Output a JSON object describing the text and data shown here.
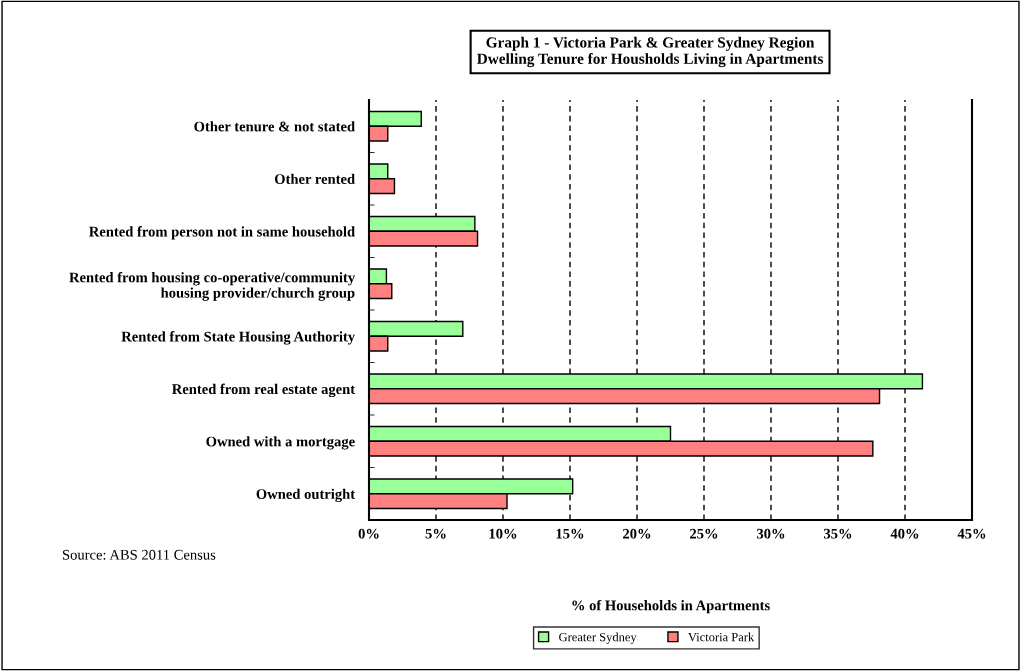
{
  "chart_data": {
    "type": "bar",
    "orientation": "horizontal",
    "title": "Graph 1 - Victoria Park & Greater Sydney Region\nDwelling Tenure for Housholds Living in Apartments",
    "xlabel": "% of Households in Apartments",
    "annotations": [
      "Source: ABS 2011 Census"
    ],
    "categories": [
      "Other tenure & not stated",
      "Other rented",
      "Rented from person not in same household",
      "Rented from housing co-operative/community\nhousing provider/church group",
      "Rented from State Housing Authority",
      "Rented from real estate agent",
      "Owned with a mortgage",
      "Owned outright"
    ],
    "series": [
      {
        "name": "Greater Sydney",
        "color": "#99ff99",
        "values": [
          3.9,
          1.4,
          7.9,
          1.3,
          7.0,
          41.3,
          22.5,
          15.2
        ]
      },
      {
        "name": "Victoria Park",
        "color": "#ff8080",
        "values": [
          1.4,
          1.9,
          8.1,
          1.7,
          1.4,
          38.1,
          37.6,
          10.3
        ]
      }
    ],
    "xlim": [
      0,
      45
    ],
    "xticks": [
      {
        "value": 0,
        "label": "0%"
      },
      {
        "value": 5,
        "label": "5%"
      },
      {
        "value": 10,
        "label": "10%"
      },
      {
        "value": 15,
        "label": "15%"
      },
      {
        "value": 20,
        "label": "20%"
      },
      {
        "value": 25,
        "label": "25%"
      },
      {
        "value": 30,
        "label": "30%"
      },
      {
        "value": 35,
        "label": "35%"
      },
      {
        "value": 40,
        "label": "40%"
      },
      {
        "value": 45,
        "label": "45%"
      }
    ],
    "grid": "x",
    "legend": "bottom"
  }
}
